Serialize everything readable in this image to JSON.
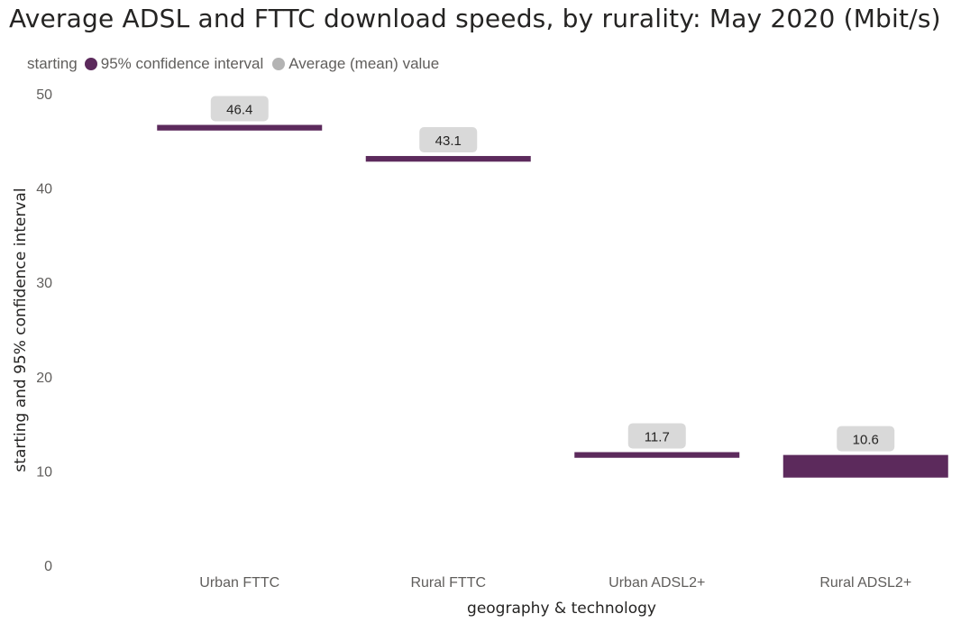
{
  "chart_data": {
    "type": "bar",
    "title": "Average ADSL and FTTC download speeds, by rurality: May 2020 (Mbit/s)",
    "xlabel": "geography & technology",
    "ylabel": "starting and 95% confidence interval",
    "ylim": [
      0,
      50
    ],
    "yticks": [
      0,
      10,
      20,
      30,
      40,
      50
    ],
    "grid": false,
    "legend": {
      "position": "top-left",
      "title": "starting",
      "entries": [
        {
          "label": "95% confidence interval",
          "color": "#5c2a5c"
        },
        {
          "label": "Average (mean) value",
          "color": "#b3b3b3"
        }
      ]
    },
    "categories": [
      "Urban FTTC",
      "Rural FTTC",
      "Urban ADSL2+",
      "Rural ADSL2+"
    ],
    "series": [
      {
        "name": "95% confidence interval",
        "ci_low": [
          46.1,
          42.8,
          11.4,
          9.3
        ],
        "ci_high": [
          46.7,
          43.4,
          12.0,
          11.7
        ]
      },
      {
        "name": "Average (mean) value",
        "values": [
          46.4,
          43.1,
          11.7,
          10.6
        ],
        "labels": [
          "46.4",
          "43.1",
          "11.7",
          "10.6"
        ]
      }
    ],
    "colors": {
      "interval": "#5c2a5c",
      "label_background": "#d9d9d9"
    }
  }
}
